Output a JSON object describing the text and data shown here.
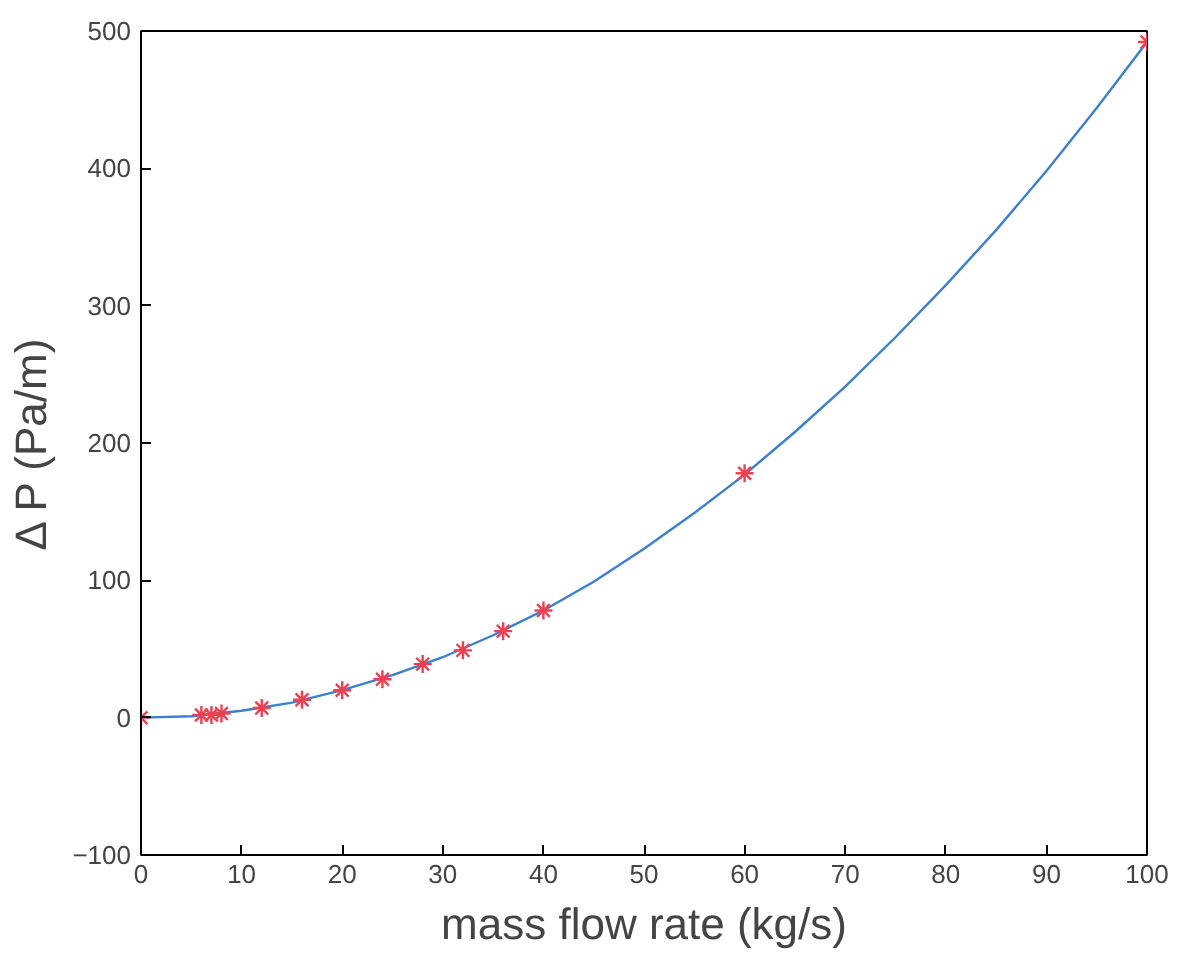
{
  "chart_data": {
    "type": "line",
    "xlabel": "mass flow rate (kg/s)",
    "ylabel": "Δ P (Pa/m)",
    "xlim": [
      0,
      100
    ],
    "xticks": [
      0,
      10,
      20,
      30,
      40,
      50,
      60,
      70,
      80,
      90,
      100
    ],
    "ylim": [
      -100,
      500
    ],
    "yticks": [
      -100,
      0,
      100,
      200,
      300,
      400,
      500
    ],
    "grid": false,
    "series": [
      {
        "color": "#3c7fd0",
        "marker": "none",
        "line_style": "solid",
        "x": [
          0,
          5,
          10,
          15,
          20,
          25,
          30,
          35,
          40,
          45,
          50,
          55,
          60,
          65,
          70,
          75,
          80,
          85,
          90,
          95,
          100
        ],
        "values": [
          0,
          1,
          5,
          11,
          20,
          31,
          44,
          60,
          78,
          99,
          123,
          149,
          177,
          208,
          241,
          277,
          315,
          355,
          398,
          444,
          492
        ]
      },
      {
        "type": "scatter",
        "color": "#f04050",
        "marker": "cross",
        "x": [
          0,
          6,
          7,
          8,
          12,
          16,
          20,
          24,
          28,
          32,
          36,
          40,
          60,
          100
        ],
        "values": [
          0,
          2,
          2,
          3,
          7,
          13,
          20,
          28,
          39,
          49,
          63,
          78,
          178,
          492
        ]
      }
    ]
  }
}
